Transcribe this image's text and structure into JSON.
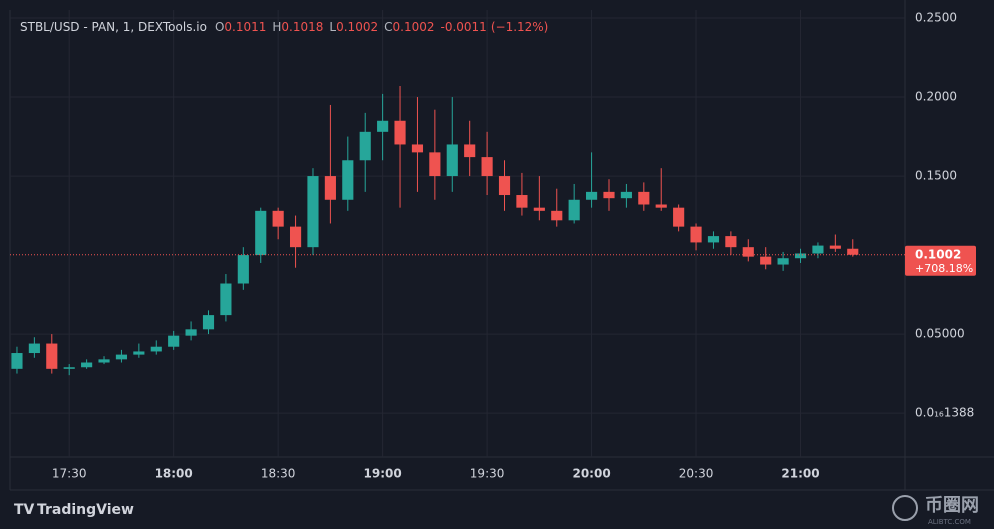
{
  "chart_data": {
    "type": "candlestick",
    "title": "STBL/USD - PAN, 1, DEXTools.io",
    "ohlc_labels": [
      "O",
      "H",
      "L",
      "C"
    ],
    "ohlc_values": [
      0.1011,
      0.1018,
      0.1002,
      0.1002
    ],
    "change": -0.0011,
    "change_pct": "(−1.12%)",
    "up_color": "#26a69a",
    "down_color": "#ef5350",
    "grid": true,
    "x": [
      "17:15",
      "17:20",
      "17:25",
      "17:30",
      "17:35",
      "17:40",
      "17:45",
      "17:50",
      "17:55",
      "18:00",
      "18:05",
      "18:10",
      "18:15",
      "18:20",
      "18:25",
      "18:30",
      "18:35",
      "18:40",
      "18:45",
      "18:50",
      "18:55",
      "19:00",
      "19:05",
      "19:10",
      "19:15",
      "19:20",
      "19:25",
      "19:30",
      "19:35",
      "19:40",
      "19:45",
      "19:50",
      "19:55",
      "20:00",
      "20:05",
      "20:10",
      "20:15",
      "20:20",
      "20:25",
      "20:30",
      "20:35",
      "20:40",
      "20:45",
      "20:50",
      "20:55",
      "21:00",
      "21:05",
      "21:10",
      "21:15"
    ],
    "open": [
      0.028,
      0.038,
      0.044,
      0.028,
      0.029,
      0.032,
      0.034,
      0.037,
      0.039,
      0.042,
      0.049,
      0.053,
      0.062,
      0.082,
      0.1,
      0.128,
      0.118,
      0.105,
      0.15,
      0.135,
      0.16,
      0.178,
      0.185,
      0.17,
      0.165,
      0.15,
      0.17,
      0.162,
      0.15,
      0.138,
      0.13,
      0.128,
      0.122,
      0.135,
      0.14,
      0.136,
      0.14,
      0.132,
      0.13,
      0.118,
      0.108,
      0.112,
      0.105,
      0.099,
      0.094,
      0.098,
      0.101,
      0.106,
      0.104
    ],
    "high": [
      0.042,
      0.048,
      0.05,
      0.031,
      0.034,
      0.036,
      0.04,
      0.044,
      0.046,
      0.052,
      0.058,
      0.065,
      0.088,
      0.105,
      0.13,
      0.13,
      0.125,
      0.155,
      0.195,
      0.175,
      0.19,
      0.202,
      0.207,
      0.2,
      0.192,
      0.2,
      0.185,
      0.178,
      0.16,
      0.152,
      0.15,
      0.142,
      0.145,
      0.165,
      0.148,
      0.145,
      0.146,
      0.155,
      0.132,
      0.12,
      0.115,
      0.115,
      0.11,
      0.105,
      0.102,
      0.104,
      0.108,
      0.113,
      0.11
    ],
    "low": [
      0.025,
      0.035,
      0.025,
      0.024,
      0.028,
      0.031,
      0.032,
      0.035,
      0.037,
      0.04,
      0.046,
      0.05,
      0.058,
      0.078,
      0.095,
      0.11,
      0.092,
      0.1,
      0.12,
      0.128,
      0.14,
      0.16,
      0.13,
      0.14,
      0.135,
      0.14,
      0.15,
      0.138,
      0.128,
      0.125,
      0.122,
      0.118,
      0.12,
      0.13,
      0.128,
      0.13,
      0.128,
      0.128,
      0.115,
      0.103,
      0.104,
      0.1,
      0.096,
      0.091,
      0.09,
      0.095,
      0.098,
      0.102,
      0.099
    ],
    "close": [
      0.038,
      0.044,
      0.028,
      0.029,
      0.032,
      0.034,
      0.037,
      0.039,
      0.042,
      0.049,
      0.053,
      0.062,
      0.082,
      0.1,
      0.128,
      0.118,
      0.105,
      0.15,
      0.135,
      0.16,
      0.178,
      0.185,
      0.17,
      0.165,
      0.15,
      0.17,
      0.162,
      0.15,
      0.138,
      0.13,
      0.128,
      0.122,
      0.135,
      0.14,
      0.136,
      0.14,
      0.132,
      0.13,
      0.118,
      0.108,
      0.112,
      0.105,
      0.099,
      0.094,
      0.098,
      0.101,
      0.106,
      0.104,
      0.1002
    ],
    "xlim": [
      "17:13",
      "21:30"
    ],
    "xticks": [
      "17:30",
      "18:00",
      "18:30",
      "19:00",
      "19:30",
      "20:00",
      "20:30",
      "21:00"
    ],
    "ylim": [
      -0.0278,
      0.2551
    ],
    "yticks": [
      {
        "value": 0.25,
        "label": "0.2500"
      },
      {
        "value": 0.2,
        "label": "0.2000"
      },
      {
        "value": 0.15,
        "label": "0.1500"
      },
      {
        "value": 0.05,
        "label": "0.05000"
      },
      {
        "value": 1.388e-17,
        "label": "0.0₁₆1388"
      }
    ],
    "price_line": 0.1002,
    "price_change": "+708.18%",
    "footer": "TradingView",
    "watermark": "币圈网",
    "watermark_sub": "ALIBTC.COM"
  }
}
